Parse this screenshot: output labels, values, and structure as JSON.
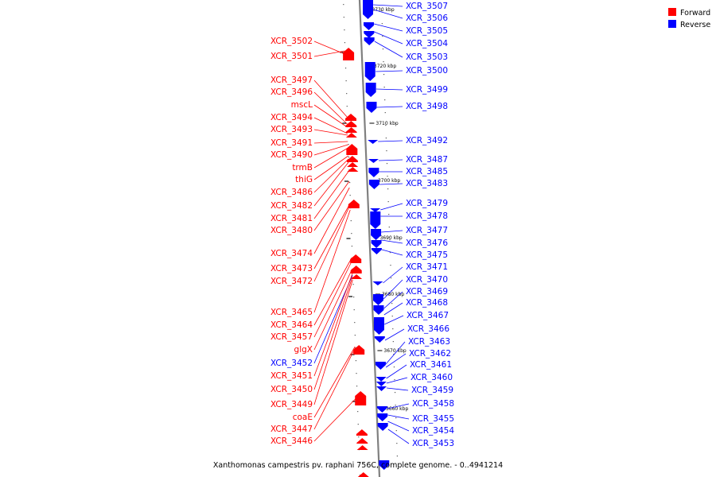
{
  "caption": "Xanthomonas campestris pv. raphani 756C, complete genome. - 0..4941214",
  "colors": {
    "forward": "#ff0000",
    "reverse": "#0000ff",
    "axis": "#808080"
  },
  "legend": [
    {
      "label": "Forward",
      "color": "#ff0000"
    },
    {
      "label": "Reverse",
      "color": "#0000ff"
    }
  ],
  "scale_labels": [
    "3730 kbp",
    "3720 kbp",
    "3710 kbp",
    "3700 kbp",
    "3690 kbp",
    "3680 kbp",
    "3670 kbp",
    "3660 kbp"
  ],
  "forward_labels": [
    "XCR_3502",
    "XCR_3501",
    "XCR_3497",
    "XCR_3496",
    "mscL",
    "XCR_3494",
    "XCR_3493",
    "XCR_3491",
    "XCR_3490",
    "trmB",
    "thiG",
    "XCR_3486",
    "XCR_3482",
    "XCR_3481",
    "XCR_3480",
    "XCR_3474",
    "XCR_3473",
    "XCR_3472",
    "XCR_3465",
    "XCR_3464",
    "XCR_3457",
    "glgX",
    "XCR_3451",
    "XCR_3450",
    "XCR_3449",
    "coaE",
    "XCR_3447",
    "XCR_3446"
  ],
  "mixed_left_labels": [
    {
      "text": "XCR_3452",
      "strand": "reverse"
    }
  ],
  "reverse_labels": [
    "XCR_3507",
    "XCR_3506",
    "XCR_3505",
    "XCR_3504",
    "XCR_3503",
    "XCR_3500",
    "XCR_3499",
    "XCR_3498",
    "XCR_3492",
    "XCR_3487",
    "XCR_3485",
    "XCR_3483",
    "XCR_3479",
    "XCR_3478",
    "XCR_3477",
    "XCR_3476",
    "XCR_3475",
    "XCR_3471",
    "XCR_3470",
    "XCR_3469",
    "XCR_3468",
    "XCR_3467",
    "XCR_3466",
    "XCR_3463",
    "XCR_3462",
    "XCR_3461",
    "XCR_3460",
    "XCR_3459",
    "XCR_3458",
    "XCR_3455",
    "XCR_3454",
    "XCR_3453"
  ]
}
